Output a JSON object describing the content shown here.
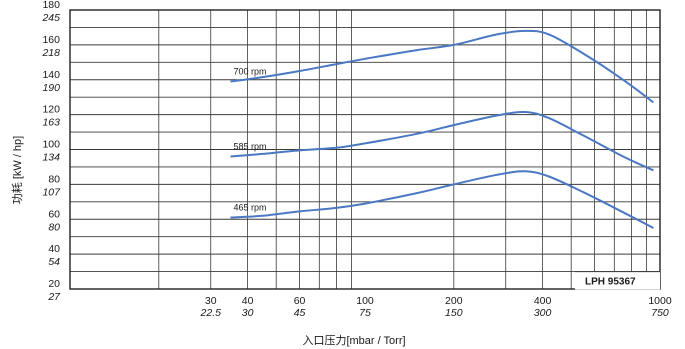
{
  "chart_data": {
    "type": "line",
    "xscale": "log",
    "xlim": [
      10,
      1000
    ],
    "ylim": [
      20,
      180
    ],
    "xlabel": "入口压力[mbar / Torr]",
    "ylabel": "功耗 [kW / hp]",
    "x_ticks": [
      {
        "mbar": "30",
        "torr": "22.5",
        "v": 30
      },
      {
        "mbar": "40",
        "torr": "30",
        "v": 40
      },
      {
        "mbar": "60",
        "torr": "45",
        "v": 60
      },
      {
        "mbar": "100",
        "torr": "75",
        "v": 100
      },
      {
        "mbar": "200",
        "torr": "150",
        "v": 200
      },
      {
        "mbar": "400",
        "torr": "300",
        "v": 400
      },
      {
        "mbar": "1000",
        "torr": "750",
        "v": 1000
      }
    ],
    "y_ticks": [
      {
        "kw": "180",
        "hp": "245",
        "v": 180
      },
      {
        "kw": "160",
        "hp": "218",
        "v": 160
      },
      {
        "kw": "140",
        "hp": "190",
        "v": 140
      },
      {
        "kw": "120",
        "hp": "163",
        "v": 120
      },
      {
        "kw": "100",
        "hp": "134",
        "v": 100
      },
      {
        "kw": "80",
        "hp": "107",
        "v": 80
      },
      {
        "kw": "60",
        "hp": "80",
        "v": 60
      },
      {
        "kw": "40",
        "hp": "54",
        "v": 40
      },
      {
        "kw": "20",
        "hp": "27",
        "v": 20
      }
    ],
    "series": [
      {
        "name": "700 rpm",
        "x": [
          35,
          45,
          60,
          80,
          100,
          150,
          200,
          280,
          350,
          420,
          550,
          750,
          950
        ],
        "y": [
          139,
          141.5,
          145,
          149,
          152,
          157,
          160,
          166,
          168,
          166,
          155,
          140,
          127
        ]
      },
      {
        "name": "585 rpm",
        "x": [
          35,
          45,
          60,
          80,
          100,
          150,
          200,
          280,
          350,
          420,
          550,
          750,
          950
        ],
        "y": [
          96,
          97.5,
          99.5,
          101,
          103.5,
          109,
          114,
          119.5,
          121.5,
          118,
          108,
          96,
          88
        ]
      },
      {
        "name": "465 rpm",
        "x": [
          35,
          45,
          60,
          80,
          100,
          150,
          200,
          280,
          350,
          420,
          550,
          750,
          950
        ],
        "y": [
          61,
          62,
          64.5,
          66.5,
          69,
          75,
          80,
          85.5,
          87.5,
          84.5,
          75.5,
          64,
          55
        ]
      }
    ],
    "annotation": "LPH 95367",
    "grid": true,
    "color": "#4a78c2"
  }
}
